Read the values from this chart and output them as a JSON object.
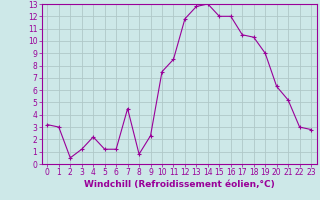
{
  "x": [
    0,
    1,
    2,
    3,
    4,
    5,
    6,
    7,
    8,
    9,
    10,
    11,
    12,
    13,
    14,
    15,
    16,
    17,
    18,
    19,
    20,
    21,
    22,
    23
  ],
  "y": [
    3.2,
    3.0,
    0.5,
    1.2,
    2.2,
    1.2,
    1.2,
    4.5,
    0.8,
    2.3,
    7.5,
    8.5,
    11.8,
    12.8,
    13.0,
    12.0,
    12.0,
    10.5,
    10.3,
    9.0,
    6.3,
    5.2,
    3.0,
    2.8
  ],
  "line_color": "#990099",
  "marker": "+",
  "marker_size": 3,
  "xlabel": "Windchill (Refroidissement éolien,°C)",
  "xlim": [
    -0.5,
    23.5
  ],
  "ylim": [
    0,
    13
  ],
  "yticks": [
    0,
    1,
    2,
    3,
    4,
    5,
    6,
    7,
    8,
    9,
    10,
    11,
    12,
    13
  ],
  "xticks": [
    0,
    1,
    2,
    3,
    4,
    5,
    6,
    7,
    8,
    9,
    10,
    11,
    12,
    13,
    14,
    15,
    16,
    17,
    18,
    19,
    20,
    21,
    22,
    23
  ],
  "background_color": "#cde8e8",
  "grid_color": "#b0c8c8",
  "line_border_color": "#990099",
  "tick_color": "#990099",
  "label_color": "#990099",
  "label_fontsize": 6.5,
  "tick_fontsize": 5.5
}
